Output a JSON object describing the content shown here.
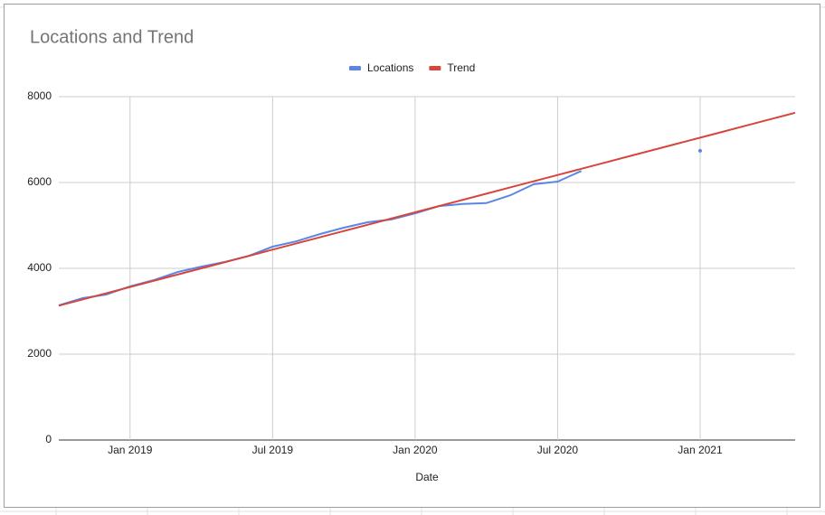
{
  "chart_data": {
    "type": "line",
    "title": "Locations and Trend",
    "x_label": "Date",
    "x": [
      "2018-10",
      "2018-11",
      "2018-12",
      "2019-01",
      "2019-02",
      "2019-03",
      "2019-04",
      "2019-05",
      "2019-06",
      "2019-07",
      "2019-08",
      "2019-09",
      "2019-10",
      "2019-11",
      "2019-12",
      "2020-01",
      "2020-02",
      "2020-03",
      "2020-04",
      "2020-05",
      "2020-06",
      "2020-07",
      "2020-08",
      "2020-09",
      "2020-10",
      "2020-11",
      "2020-12",
      "2021-01",
      "2021-02",
      "2021-03",
      "2021-04",
      "2021-05"
    ],
    "series": [
      {
        "name": "Locations",
        "color": "#5b86e5",
        "values": [
          3137,
          3305,
          3390,
          3580,
          3726,
          3915,
          4040,
          4150,
          4290,
          4505,
          4630,
          4800,
          4947,
          5074,
          5140,
          5280,
          5450,
          5500,
          5520,
          5700,
          5960,
          6020,
          6270,
          null,
          null,
          null,
          null,
          6740,
          null,
          null,
          null,
          null
        ]
      },
      {
        "name": "Trend",
        "color": "#d5463d",
        "values": [
          3130,
          3275,
          3420,
          3565,
          3710,
          3855,
          4000,
          4145,
          4290,
          4435,
          4580,
          4725,
          4870,
          5015,
          5160,
          5305,
          5450,
          5595,
          5740,
          5885,
          6030,
          6175,
          6320,
          6465,
          6610,
          6755,
          6900,
          7045,
          7190,
          7335,
          7480,
          7625
        ]
      }
    ],
    "xlim": [
      "2018-10",
      "2021-05"
    ],
    "xticks": [
      {
        "value": "2019-01",
        "label": "Jan 2019"
      },
      {
        "value": "2019-07",
        "label": "Jul 2019"
      },
      {
        "value": "2020-01",
        "label": "Jan 2020"
      },
      {
        "value": "2020-07",
        "label": "Jul 2020"
      },
      {
        "value": "2021-01",
        "label": "Jan 2021"
      }
    ],
    "ylim": [
      0,
      8000
    ],
    "yticks": [
      0,
      2000,
      4000,
      6000,
      8000
    ],
    "grid": true,
    "legend": "top"
  }
}
